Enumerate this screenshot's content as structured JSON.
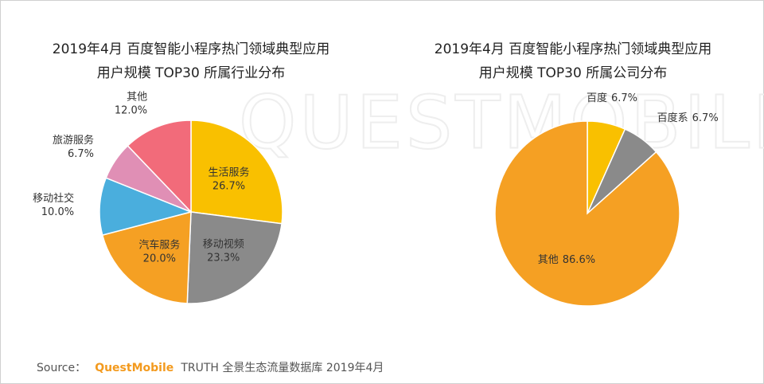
{
  "chart_data": [
    {
      "type": "pie",
      "title": [
        "2019年4月 百度智能小程序热门领域典型应用",
        "用户规模 TOP30 所属行业分布"
      ],
      "categories": [
        "生活服务",
        "移动视频",
        "汽车服务",
        "移动社交",
        "旅游服务",
        "其他"
      ],
      "values": [
        26.7,
        23.3,
        20.0,
        10.0,
        6.7,
        12.0
      ],
      "value_labels": [
        "26.7%",
        "23.3%",
        "20.0%",
        "10.0%",
        "6.7%",
        "12.0%"
      ],
      "colors": [
        "#f9c000",
        "#8a8a8a",
        "#f5a023",
        "#4aaedd",
        "#e08fb5",
        "#f26b7a"
      ],
      "label_style": "two-line"
    },
    {
      "type": "pie",
      "title": [
        "2019年4月 百度智能小程序热门领域典型应用",
        "用户规模 TOP30 所属公司分布"
      ],
      "categories": [
        "百度",
        "百度系",
        "其他"
      ],
      "values": [
        6.7,
        6.7,
        86.6
      ],
      "value_labels": [
        "6.7%",
        "6.7%",
        "86.6%"
      ],
      "colors": [
        "#f9c000",
        "#8a8a8a",
        "#f5a023"
      ],
      "label_style": "one-line"
    }
  ],
  "watermark": "QUESTMOBILE",
  "footer": {
    "prefix": "Source：",
    "brand": "QuestMobile",
    "text": "TRUTH 全景生态流量数据库 2019年4月"
  }
}
